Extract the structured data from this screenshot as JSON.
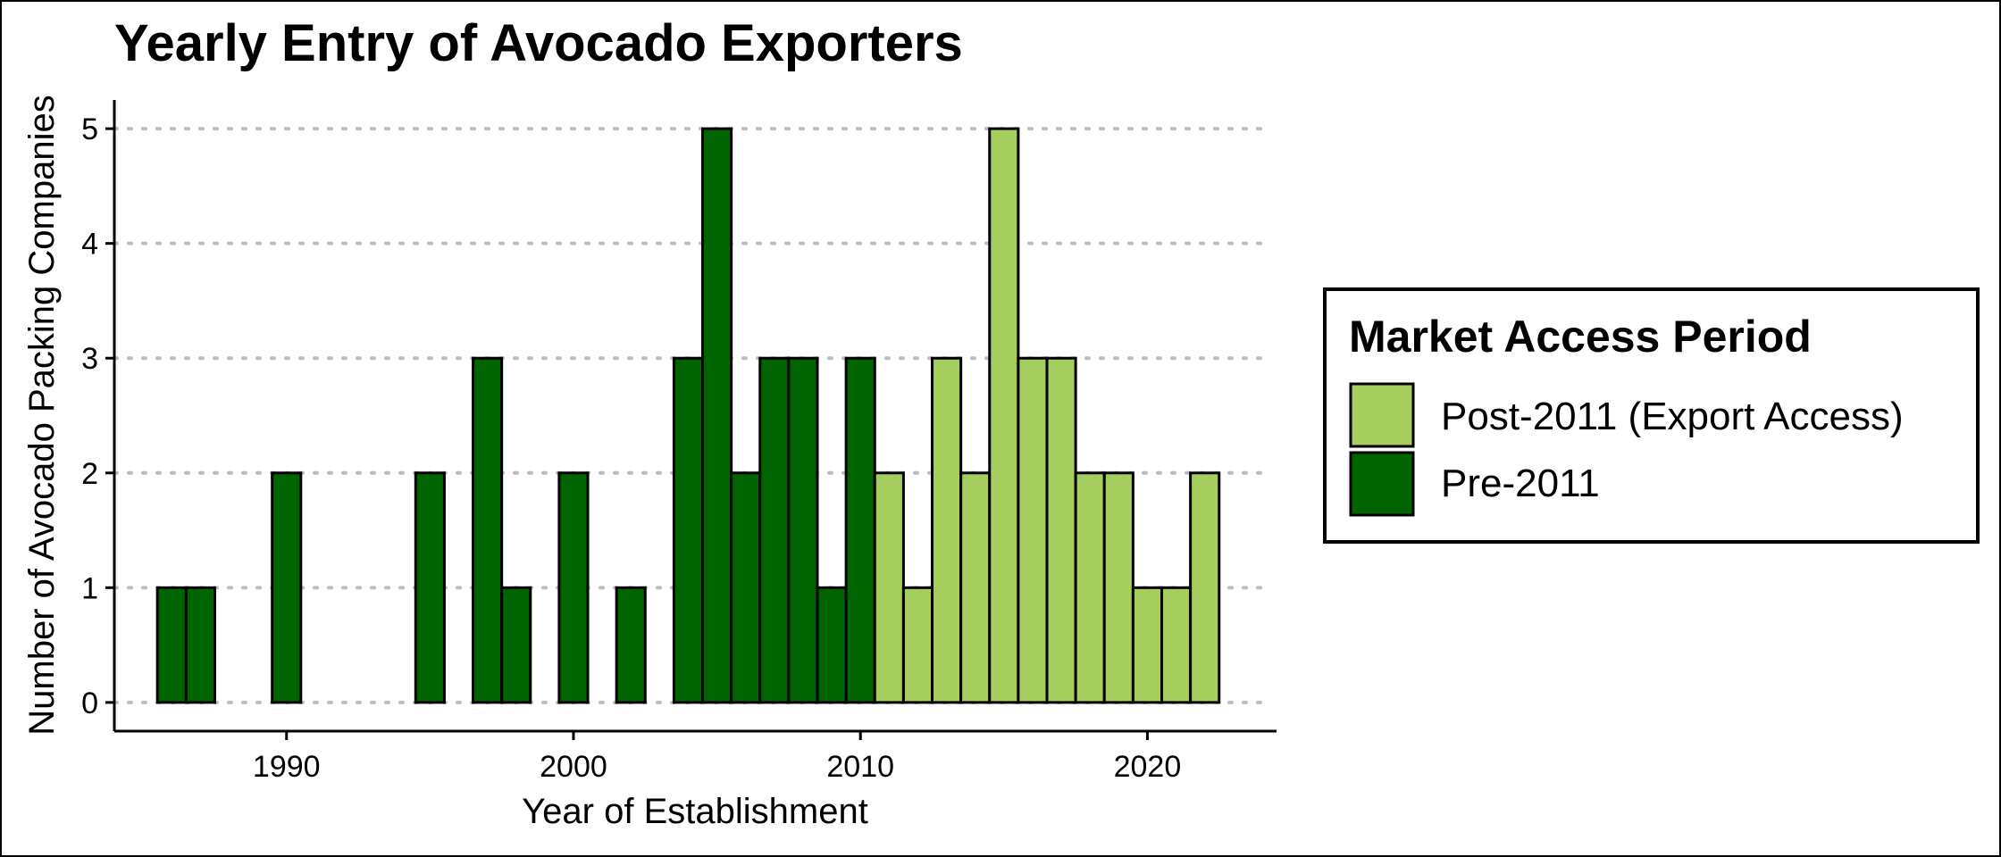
{
  "chart_data": {
    "type": "bar",
    "title": "Yearly Entry of Avocado Exporters",
    "xlabel": "Year of Establishment",
    "ylabel": "Number of Avocado Packing Companies",
    "x_ticks": [
      1990,
      2000,
      2010,
      2020
    ],
    "y_ticks": [
      0,
      1,
      2,
      3,
      4,
      5
    ],
    "xlim": [
      1984,
      2024.5
    ],
    "ylim": [
      -0.25,
      5.25
    ],
    "grid": "horizontal dotted",
    "legend": {
      "title": "Market Access Period",
      "placement": "right",
      "entries": [
        {
          "label": "Post-2011 (Export Access)",
          "color": "#a6ce5f"
        },
        {
          "label": "Pre-2011",
          "color": "#006400"
        }
      ]
    },
    "years": [
      1986,
      1987,
      1988,
      1989,
      1990,
      1991,
      1992,
      1993,
      1994,
      1995,
      1996,
      1997,
      1998,
      1999,
      2000,
      2001,
      2002,
      2003,
      2004,
      2005,
      2006,
      2007,
      2008,
      2009,
      2010,
      2011,
      2012,
      2013,
      2014,
      2015,
      2016,
      2017,
      2018,
      2019,
      2020,
      2021,
      2022
    ],
    "values": [
      1,
      1,
      0,
      0,
      2,
      0,
      0,
      0,
      0,
      2,
      0,
      3,
      1,
      0,
      2,
      0,
      1,
      0,
      3,
      5,
      2,
      3,
      3,
      1,
      3,
      2,
      1,
      3,
      2,
      5,
      3,
      3,
      2,
      2,
      1,
      1,
      2
    ],
    "series": [
      {
        "name": "Pre-2011",
        "color": "#006400",
        "from": 1986,
        "to": 2010
      },
      {
        "name": "Post-2011 (Export Access)",
        "color": "#a6ce5f",
        "from": 2011,
        "to": 2022
      }
    ]
  }
}
